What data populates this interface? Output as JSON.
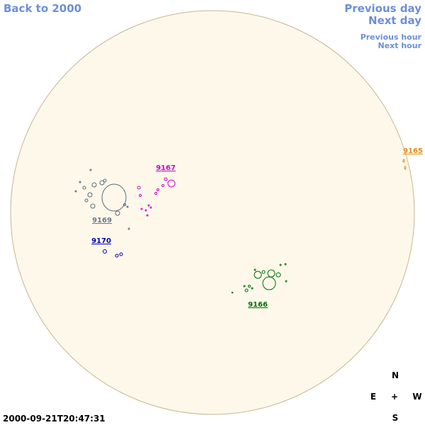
{
  "navigation": {
    "back": "Back to 2000",
    "previous_day": "Previous day",
    "next_day": "Next day",
    "previous_hour": "Previous hour",
    "next_hour": "Next hour"
  },
  "regions": [
    {
      "label": "9165"
    },
    {
      "label": "9167"
    },
    {
      "label": "9169"
    },
    {
      "label": "9170"
    },
    {
      "label": "9166"
    }
  ],
  "compass": {
    "north": "N",
    "east": "E",
    "center": "+",
    "west": "W",
    "south": "S"
  },
  "timestamp": "2000-09-21T20:47:31"
}
